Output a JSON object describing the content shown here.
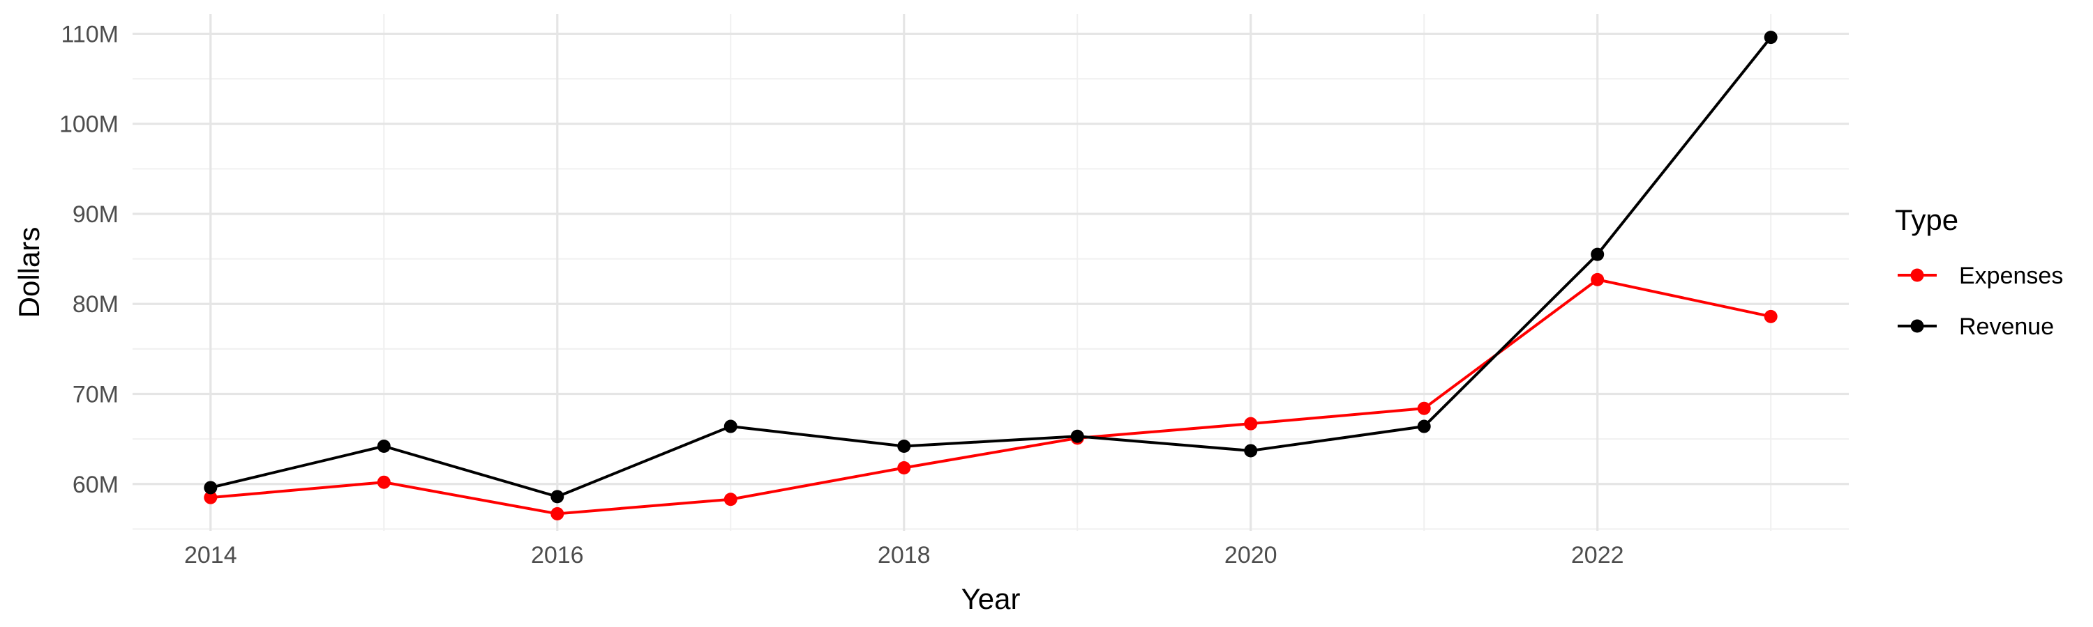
{
  "chart_data": {
    "type": "line",
    "title": "",
    "xlabel": "Year",
    "ylabel": "Dollars",
    "x": [
      2014,
      2015,
      2016,
      2017,
      2018,
      2019,
      2020,
      2021,
      2022,
      2023
    ],
    "xlim": [
      2013.55,
      2023.45
    ],
    "ylim": [
      54.8,
      112.2
    ],
    "x_ticks": [
      2014,
      2016,
      2018,
      2020,
      2022
    ],
    "x_tick_labels": [
      "2014",
      "2016",
      "2018",
      "2020",
      "2022"
    ],
    "y_ticks": [
      60,
      70,
      80,
      90,
      100,
      110
    ],
    "y_tick_labels": [
      "60M",
      "70M",
      "80M",
      "90M",
      "100M",
      "110M"
    ],
    "y_unit": "millions of dollars",
    "grid": true,
    "legend": {
      "title": "Type",
      "position": "right"
    },
    "series": [
      {
        "name": "Expenses",
        "color": "#ff0000",
        "values": [
          58.5,
          60.2,
          56.7,
          58.3,
          61.8,
          65.1,
          66.7,
          68.4,
          82.7,
          78.6
        ]
      },
      {
        "name": "Revenue",
        "color": "#000000",
        "values": [
          59.6,
          64.2,
          58.6,
          66.4,
          64.2,
          65.3,
          63.7,
          66.4,
          85.5,
          109.6
        ]
      }
    ]
  }
}
